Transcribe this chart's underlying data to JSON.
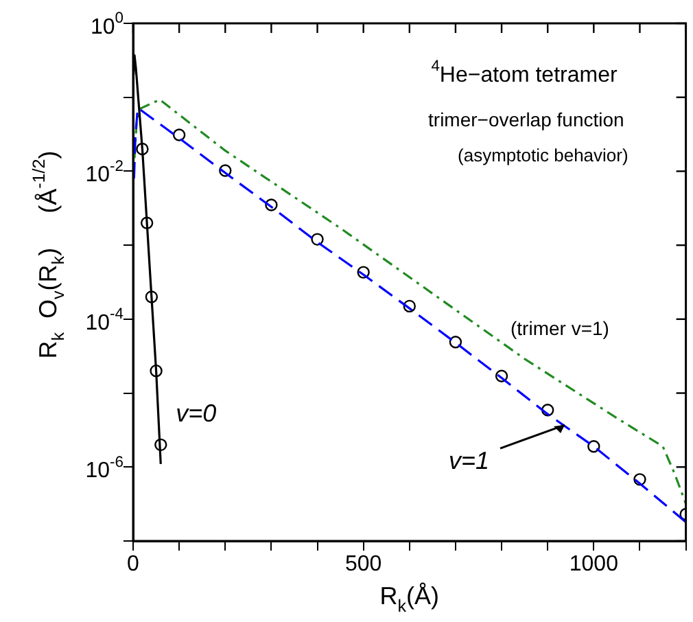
{
  "chart_data": {
    "type": "line",
    "title": "$^{4}$He−atom tetramer",
    "subtitle": "trimer−overlap function",
    "xlabel": "R$_{k}$(Å)",
    "ylabel": "R$_{k}$  O$_{v}$(R$_{k}$)     (Å$^{-1/2}$)",
    "annotations": [
      "(asymptotic behavior)",
      "v=0",
      {
        "text": "v=1",
        "x": 937,
        "y": 3.7e-06
      },
      "(trimer v=1)"
    ],
    "log": "y",
    "grid": false,
    "legend": false,
    "xlim": [
      0,
      1200
    ],
    "xticks": [
      0,
      {
        "value": 100,
        "label": null
      },
      {
        "value": 200,
        "label": null
      },
      {
        "value": 300,
        "label": null
      },
      {
        "value": 400,
        "label": null
      },
      500,
      {
        "value": 600,
        "label": null
      },
      {
        "value": 700,
        "label": null
      },
      {
        "value": 800,
        "label": null
      },
      {
        "value": 900,
        "label": null
      },
      1000,
      {
        "value": 1100,
        "label": null
      },
      {
        "value": 1200,
        "label": null
      }
    ],
    "ylim": [
      1e-07,
      1
    ],
    "yticks": [
      {
        "value": 1e-07,
        "label": null
      },
      {
        "value": 1e-06,
        "label": "10$^{-6}$"
      },
      {
        "value": 1e-05,
        "label": null
      },
      {
        "value": 0.0001,
        "label": "10$^{-4}$"
      },
      {
        "value": 0.001,
        "label": null
      },
      {
        "value": 0.01,
        "label": "10$^{-2}$"
      },
      {
        "value": 0.1,
        "label": null
      },
      {
        "value": 1,
        "label": "10$^{0}$"
      }
    ],
    "series": [
      {
        "type": "line",
        "color": "#000000",
        "line_style": "solid",
        "marker": "none",
        "x": [
          1,
          3,
          6,
          20,
          30,
          40,
          50,
          60
        ],
        "values": [
          0.2,
          0.37,
          0.25,
          0.02,
          0.002,
          0.0002,
          2e-05,
          1.1e-06
        ]
      },
      {
        "type": "scatter",
        "color": "#000000",
        "marker": "circle",
        "x": [
          20,
          30,
          40,
          50,
          60
        ],
        "values": [
          0.02,
          0.002,
          0.0002,
          2e-05,
          2e-06
        ]
      },
      {
        "type": "line",
        "color": "#0000ff",
        "line_style": "dashed",
        "marker": "none",
        "x": [
          2,
          5,
          10,
          100,
          200,
          300,
          400,
          500,
          600,
          700,
          800,
          900,
          1000,
          1100,
          1200
        ],
        "values": [
          0.008,
          0.03,
          0.072,
          0.028,
          0.0095,
          0.0033,
          0.0011,
          0.0004,
          0.00014,
          4.8e-05,
          1.6e-05,
          5.2e-06,
          1.9e-06,
          6e-07,
          1.8e-07
        ]
      },
      {
        "type": "scatter",
        "color": "#000000",
        "marker": "circle",
        "x": [
          100,
          200,
          300,
          400,
          500,
          600,
          700,
          800,
          900,
          1000,
          1100,
          1200
        ],
        "values": [
          0.031,
          0.0102,
          0.0035,
          0.0012,
          0.00043,
          0.00015,
          4.9e-05,
          1.7e-05,
          5.9e-06,
          1.9e-06,
          6.8e-07,
          2.3e-07
        ]
      },
      {
        "type": "line",
        "color": "#228b22",
        "line_style": "dashdot",
        "marker": "none",
        "x": [
          3,
          8,
          15,
          58,
          200,
          450,
          850,
          1050,
          1150,
          1175,
          1200
        ],
        "values": [
          0.015,
          0.05,
          0.07,
          0.093,
          0.019,
          0.0017,
          2.9e-05,
          4.6e-06,
          1.9e-06,
          8.3e-07,
          3.2e-07
        ]
      }
    ]
  }
}
